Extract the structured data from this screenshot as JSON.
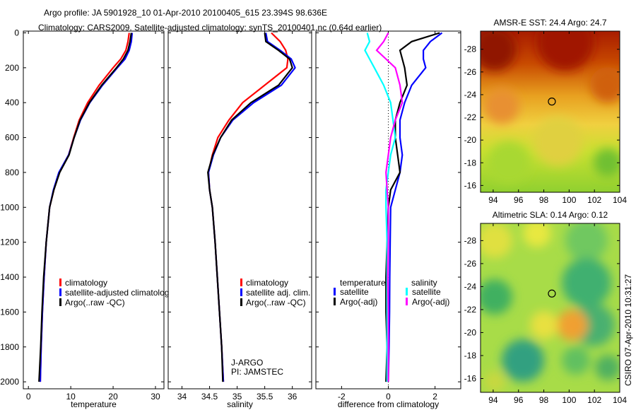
{
  "title_line1": "Argo profile: JA 5901928_10 01-Apr-2010 20100405_615 23.394S 98.636E",
  "title_line2": "Climatology: CARS2009. Satellite-adjusted climatology: synTS_20100401.nc (0.64d earlier)",
  "footer_vertical": "CSIRO 07-Apr-2010 10:31:27",
  "colors": {
    "climatology": "#ff0000",
    "satellite": "#0000ff",
    "argo": "#000000",
    "sal_satellite": "#00ffff",
    "sal_argo": "#ff00ff"
  },
  "chart_data": [
    {
      "type": "line",
      "xlabel": "temperature",
      "ylabel": "",
      "xlim": [
        -1.2,
        32
      ],
      "ylim": [
        2040,
        -10
      ],
      "xticks": [
        0,
        10,
        20,
        30
      ],
      "yticks": [
        0,
        200,
        400,
        600,
        800,
        1000,
        1200,
        1400,
        1600,
        1800,
        2000
      ],
      "depth": [
        0,
        50,
        100,
        150,
        200,
        300,
        400,
        500,
        600,
        700,
        800,
        900,
        1000,
        1200,
        1400,
        1600,
        1800,
        2000
      ],
      "series": [
        {
          "name": "climatology",
          "color": "#ff0000",
          "values": [
            23.8,
            23.5,
            23.0,
            21.8,
            20.0,
            16.7,
            14.0,
            12.0,
            10.7,
            9.5,
            7.3,
            6.0,
            5.0,
            4.2,
            3.7,
            3.3,
            3.0,
            2.8
          ]
        },
        {
          "name": "satellite-adjusted climatology",
          "color": "#0000ff",
          "values": [
            24.5,
            24.3,
            23.8,
            22.8,
            21.0,
            17.5,
            14.5,
            12.3,
            10.8,
            9.5,
            7.2,
            5.9,
            5.0,
            4.2,
            3.7,
            3.3,
            3.0,
            2.8
          ]
        },
        {
          "name": "Argo(..raw -QC)",
          "color": "#000000",
          "values": [
            24.3,
            24.0,
            23.5,
            22.4,
            20.8,
            17.3,
            14.4,
            12.2,
            10.8,
            9.6,
            7.4,
            6.0,
            5.0,
            4.2,
            3.6,
            3.2,
            2.9,
            2.5
          ]
        }
      ],
      "legend": [
        "climatology",
        "satellite-adjusted climatolog",
        "Argo(..raw -QC)"
      ]
    },
    {
      "type": "line",
      "xlabel": "salinity",
      "xlim": [
        33.75,
        36.35
      ],
      "ylim": [
        2040,
        -10
      ],
      "xticks": [
        34,
        34.5,
        35,
        35.5,
        36
      ],
      "yticks": [
        0,
        200,
        400,
        600,
        800,
        1000,
        1200,
        1400,
        1600,
        1800,
        2000
      ],
      "depth": [
        0,
        50,
        100,
        150,
        200,
        300,
        400,
        500,
        600,
        700,
        800,
        900,
        1000,
        1200,
        1400,
        1600,
        1800,
        2000
      ],
      "series": [
        {
          "name": "climatology",
          "color": "#ff0000",
          "values": [
            35.62,
            35.78,
            35.88,
            35.92,
            35.9,
            35.5,
            35.1,
            34.85,
            34.65,
            34.55,
            34.48,
            34.5,
            34.55,
            34.6,
            34.64,
            34.68,
            34.72,
            34.75
          ]
        },
        {
          "name": "satellite adj. clim.",
          "color": "#0000ff",
          "values": [
            35.52,
            35.55,
            35.78,
            35.98,
            36.05,
            35.8,
            35.3,
            34.92,
            34.7,
            34.57,
            34.48,
            34.5,
            34.55,
            34.6,
            34.64,
            34.68,
            34.72,
            34.75
          ]
        },
        {
          "name": "Argo(..raw -QC)",
          "color": "#000000",
          "values": [
            35.5,
            35.52,
            35.75,
            35.95,
            36.0,
            35.75,
            35.25,
            34.9,
            34.7,
            34.56,
            34.47,
            34.5,
            34.55,
            34.6,
            34.64,
            34.68,
            34.72,
            34.74
          ]
        }
      ],
      "legend": [
        "climatology",
        "satellite adj. clim.",
        "Argo(..raw -QC)"
      ],
      "annotations": [
        "J-ARGO",
        "PI: JAMSTEC"
      ]
    },
    {
      "type": "line",
      "xlabel": "difference from climatology",
      "xlim": [
        -3.1,
        3.1
      ],
      "ylim": [
        2040,
        -10
      ],
      "xticks": [
        -2,
        0,
        2
      ],
      "yticks": [
        0,
        200,
        400,
        600,
        800,
        1000,
        1200,
        1400,
        1600,
        1800,
        2000
      ],
      "depth": [
        0,
        50,
        100,
        150,
        200,
        300,
        400,
        500,
        600,
        700,
        800,
        900,
        1000,
        1200,
        1400,
        1600,
        1800,
        2000
      ],
      "series": [
        {
          "name": "temperature satellite",
          "color": "#0000ff",
          "values": [
            2.3,
            1.8,
            1.5,
            1.5,
            1.6,
            1.0,
            0.7,
            0.5,
            0.5,
            0.6,
            0.5,
            0.3,
            0.1,
            0.08,
            0.06,
            0.05,
            0.03,
            0.0
          ]
        },
        {
          "name": "temperature Argo(-adj)",
          "color": "#000000",
          "values": [
            2.2,
            1.0,
            0.5,
            0.6,
            0.7,
            0.8,
            0.5,
            0.3,
            0.3,
            0.4,
            0.5,
            0.1,
            0.0,
            -0.05,
            -0.1,
            -0.1,
            -0.05,
            -0.1
          ]
        },
        {
          "name": "salinity satellite",
          "color": "#00ffff",
          "values": [
            -0.9,
            -0.8,
            -1.0,
            -0.8,
            -0.6,
            -0.2,
            0.1,
            0.2,
            0.3,
            0.1,
            0.0,
            -0.1,
            -0.1,
            -0.05,
            -0.05,
            -0.05,
            -0.05,
            -0.05
          ]
        },
        {
          "name": "salinity Argo(-adj)",
          "color": "#ff00ff",
          "values": [
            0.0,
            -0.2,
            -0.5,
            -0.1,
            0.3,
            0.5,
            0.6,
            0.3,
            0.1,
            0.0,
            -0.1,
            -0.05,
            0.0,
            0.0,
            -0.02,
            0.0,
            0.0,
            0.0
          ]
        }
      ],
      "legend_headers": [
        "temperature",
        "salinity"
      ],
      "legend": [
        "satellite",
        "Argo(-adj)",
        "satellite",
        "Argo(-adj)"
      ]
    },
    {
      "type": "heatmap",
      "title": "AMSR-E SST: 24.4  Argo: 24.7",
      "xlim": [
        93,
        104
      ],
      "ylim": [
        -15.4,
        -29.6
      ],
      "xticks": [
        94,
        96,
        98,
        100,
        102,
        104
      ],
      "yticks": [
        -16,
        -18,
        -20,
        -22,
        -24,
        -26,
        -28
      ],
      "marker": {
        "lon": 98.636,
        "lat": -23.394
      }
    },
    {
      "type": "heatmap",
      "title": "Altimetric SLA: 0.14  Argo: 0.12",
      "xlim": [
        93,
        104
      ],
      "ylim": [
        -14.8,
        -29.5
      ],
      "xticks": [
        94,
        96,
        98,
        100,
        102,
        104
      ],
      "yticks": [
        -16,
        -18,
        -20,
        -22,
        -24,
        -26,
        -28
      ],
      "marker": {
        "lon": 98.636,
        "lat": -23.394
      }
    }
  ]
}
